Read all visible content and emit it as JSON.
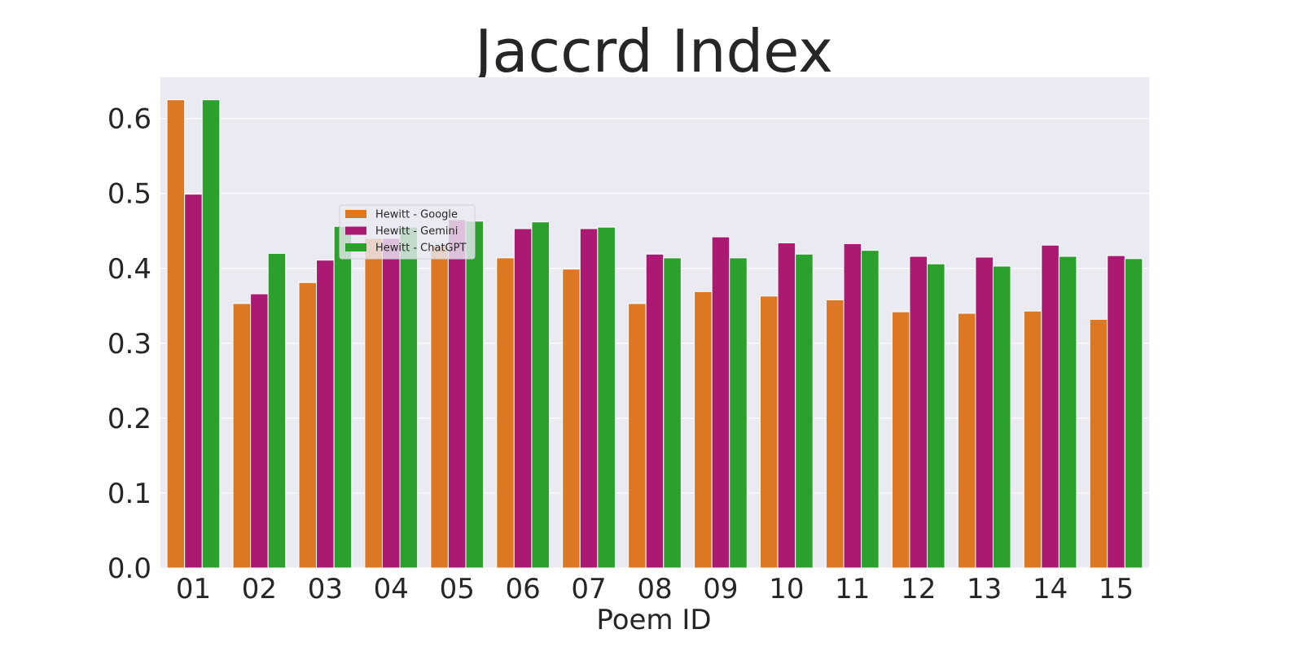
{
  "chart_data": {
    "type": "bar",
    "title": "Jaccrd Index",
    "xlabel": "Poem ID",
    "ylabel": "",
    "ylim": [
      0,
      0.655
    ],
    "yticks": [
      "0.0",
      "0.1",
      "0.2",
      "0.3",
      "0.4",
      "0.5",
      "0.6"
    ],
    "grid": true,
    "legend_position": "upper-left-inside",
    "categories": [
      "01",
      "02",
      "03",
      "04",
      "05",
      "06",
      "07",
      "08",
      "09",
      "10",
      "11",
      "12",
      "13",
      "14",
      "15"
    ],
    "series": [
      {
        "name": "Hewitt - Google",
        "color": "#dd7722",
        "values": [
          0.625,
          0.353,
          0.381,
          0.44,
          0.43,
          0.414,
          0.399,
          0.353,
          0.369,
          0.363,
          0.358,
          0.342,
          0.34,
          0.343,
          0.332
        ]
      },
      {
        "name": "Hewitt - Gemini",
        "color": "#aa1a72",
        "values": [
          0.499,
          0.366,
          0.411,
          0.44,
          0.465,
          0.453,
          0.453,
          0.419,
          0.442,
          0.434,
          0.433,
          0.416,
          0.415,
          0.431,
          0.417
        ]
      },
      {
        "name": "Hewitt - ChatGPT",
        "color": "#2ca02c",
        "values": [
          0.625,
          0.42,
          0.456,
          0.455,
          0.463,
          0.462,
          0.455,
          0.414,
          0.414,
          0.419,
          0.424,
          0.406,
          0.403,
          0.416,
          0.413
        ]
      }
    ],
    "plot_background": "#eaeaf2",
    "grid_color": "#ffffff"
  }
}
